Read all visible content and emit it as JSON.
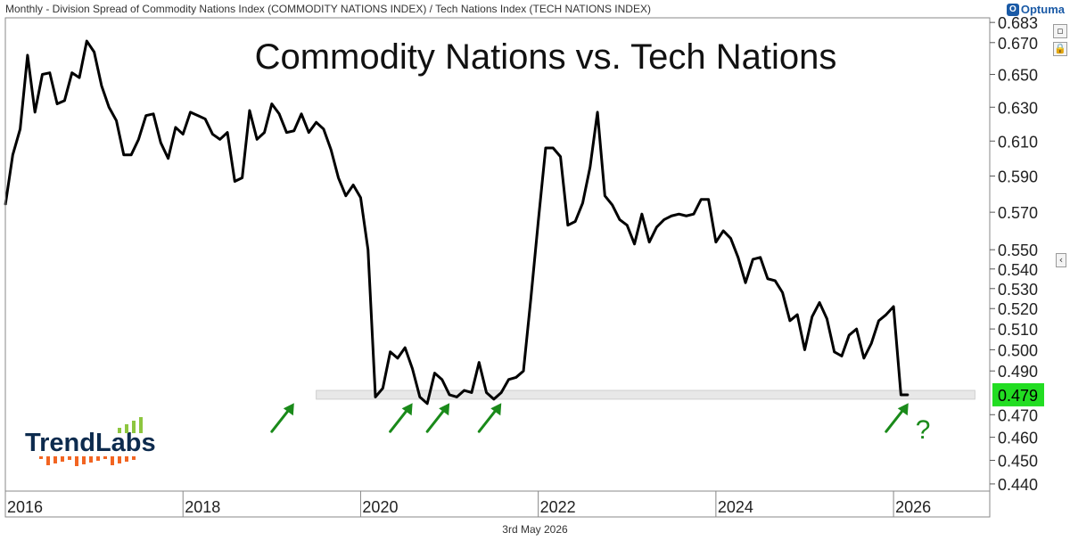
{
  "header": {
    "description": "Monthly - Division Spread of Commodity Nations Index (COMMODITY NATIONS INDEX) / Tech Nations Index (TECH NATIONS INDEX)",
    "brand": "Optuma",
    "brand_icon": "optuma-logo-icon"
  },
  "footer": {
    "date": "3rd May 2026"
  },
  "logo": {
    "text": "TrendLabs",
    "accent_color": "#8dc63f",
    "dash_color": "#f26522"
  },
  "annotations": {
    "question_mark": "?"
  },
  "colors": {
    "line": "#000000",
    "support_band": "#e8e8e8",
    "last_value_bg": "#22dd22",
    "arrow": "#1a8a1a",
    "grid": "#cccccc"
  },
  "chart_data": {
    "type": "line",
    "title": "Commodity Nations vs. Tech Nations",
    "xlabel": "",
    "ylabel": "",
    "x_ticks": [
      "2016",
      "2018",
      "2020",
      "2022",
      "2024",
      "2026"
    ],
    "y_ticks": [
      0.44,
      0.45,
      0.46,
      0.47,
      0.49,
      0.5,
      0.51,
      0.52,
      0.53,
      0.54,
      0.55,
      0.57,
      0.59,
      0.61,
      0.63,
      0.65,
      0.67,
      0.683
    ],
    "ylim": [
      0.437,
      0.686
    ],
    "xlim": [
      "2016-01",
      "2027-02"
    ],
    "y_scale": "log",
    "last_value": "0.479",
    "support_band": [
      0.477,
      0.481
    ],
    "series": [
      {
        "x": [
          "2016-01",
          "2016-02",
          "2016-03",
          "2016-04",
          "2016-05",
          "2016-06",
          "2016-07",
          "2016-08",
          "2016-09",
          "2016-10",
          "2016-11",
          "2016-12",
          "2017-01",
          "2017-02",
          "2017-03",
          "2017-04",
          "2017-05",
          "2017-06",
          "2017-07",
          "2017-08",
          "2017-09",
          "2017-10",
          "2017-11",
          "2017-12",
          "2018-01",
          "2018-02",
          "2018-03",
          "2018-04",
          "2018-05",
          "2018-06",
          "2018-07",
          "2018-08",
          "2018-09",
          "2018-10",
          "2018-11",
          "2018-12",
          "2019-01",
          "2019-02",
          "2019-03",
          "2019-04",
          "2019-05",
          "2019-06",
          "2019-07",
          "2019-08",
          "2019-09",
          "2019-10",
          "2019-11",
          "2019-12",
          "2020-01",
          "2020-02",
          "2020-03",
          "2020-04",
          "2020-05",
          "2020-06",
          "2020-07",
          "2020-08",
          "2020-09",
          "2020-10",
          "2020-11",
          "2020-12",
          "2021-01",
          "2021-02",
          "2021-03",
          "2021-04",
          "2021-05",
          "2021-06",
          "2021-07",
          "2021-08",
          "2021-09",
          "2021-10",
          "2021-11",
          "2021-12",
          "2022-01",
          "2022-02",
          "2022-03",
          "2022-04",
          "2022-05",
          "2022-06",
          "2022-07",
          "2022-08",
          "2022-09",
          "2022-10",
          "2022-11",
          "2022-12",
          "2023-01",
          "2023-02",
          "2023-03",
          "2023-04",
          "2023-05",
          "2023-06",
          "2023-07",
          "2023-08",
          "2023-09",
          "2023-10",
          "2023-11",
          "2023-12",
          "2024-01",
          "2024-02",
          "2024-03",
          "2024-04",
          "2024-05",
          "2024-06",
          "2024-07",
          "2024-08",
          "2024-09",
          "2024-10",
          "2024-11",
          "2024-12",
          "2025-01",
          "2025-02",
          "2025-03",
          "2025-04",
          "2025-05",
          "2025-06",
          "2025-07",
          "2025-08",
          "2025-09",
          "2025-10",
          "2025-11",
          "2025-12",
          "2026-01",
          "2026-02",
          "2026-03"
        ],
        "values": [
          0.574,
          0.602,
          0.617,
          0.662,
          0.627,
          0.65,
          0.651,
          0.632,
          0.634,
          0.651,
          0.648,
          0.671,
          0.664,
          0.643,
          0.63,
          0.622,
          0.602,
          0.602,
          0.611,
          0.625,
          0.626,
          0.609,
          0.6,
          0.618,
          0.614,
          0.627,
          0.625,
          0.623,
          0.614,
          0.611,
          0.615,
          0.587,
          0.589,
          0.628,
          0.611,
          0.615,
          0.632,
          0.626,
          0.615,
          0.616,
          0.626,
          0.615,
          0.621,
          0.617,
          0.605,
          0.589,
          0.579,
          0.585,
          0.578,
          0.55,
          0.478,
          0.482,
          0.499,
          0.496,
          0.501,
          0.491,
          0.478,
          0.475,
          0.489,
          0.486,
          0.479,
          0.478,
          0.481,
          0.48,
          0.494,
          0.48,
          0.477,
          0.48,
          0.486,
          0.487,
          0.49,
          0.525,
          0.565,
          0.606,
          0.606,
          0.601,
          0.563,
          0.565,
          0.575,
          0.595,
          0.627,
          0.579,
          0.574,
          0.566,
          0.563,
          0.553,
          0.569,
          0.554,
          0.562,
          0.566,
          0.568,
          0.569,
          0.568,
          0.569,
          0.577,
          0.577,
          0.554,
          0.56,
          0.556,
          0.546,
          0.533,
          0.545,
          0.546,
          0.535,
          0.534,
          0.528,
          0.514,
          0.517,
          0.5,
          0.516,
          0.523,
          0.515,
          0.499,
          0.497,
          0.507,
          0.51,
          0.496,
          0.503,
          0.514,
          0.517,
          0.521,
          0.479,
          0.479
        ]
      }
    ]
  }
}
